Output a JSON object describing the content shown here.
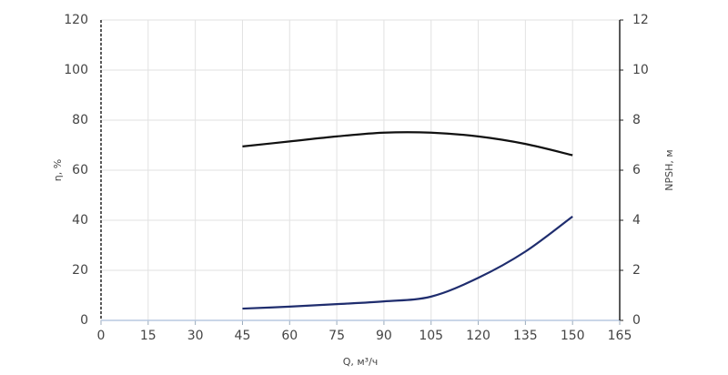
{
  "chart_data": {
    "type": "line",
    "x_label": "Q, м³/ч",
    "y_label": "η, %",
    "y2_label": "NPSH, м",
    "x": [
      45,
      60,
      75,
      90,
      105,
      120,
      135,
      150
    ],
    "series": [
      {
        "name": "η",
        "color": "#111111",
        "values": [
          69.5,
          71.5,
          73.5,
          75,
          75,
          73.5,
          70.5,
          66
        ]
      },
      {
        "name": "NPSH",
        "color": "#1f2d6e",
        "axis": "y2",
        "values": [
          0.47,
          0.55,
          0.65,
          0.76,
          0.95,
          1.7,
          2.75,
          4.15
        ]
      }
    ],
    "xlim": [
      0,
      165
    ],
    "xticks": [
      0,
      15,
      30,
      45,
      60,
      75,
      90,
      105,
      120,
      135,
      150,
      165
    ],
    "ylim": [
      0,
      120
    ],
    "yticks": [
      0,
      20,
      40,
      60,
      80,
      100,
      120
    ],
    "y2lim": [
      0,
      12
    ],
    "y2ticks": [
      0,
      2,
      4,
      6,
      8,
      10,
      12
    ],
    "grid": true
  }
}
